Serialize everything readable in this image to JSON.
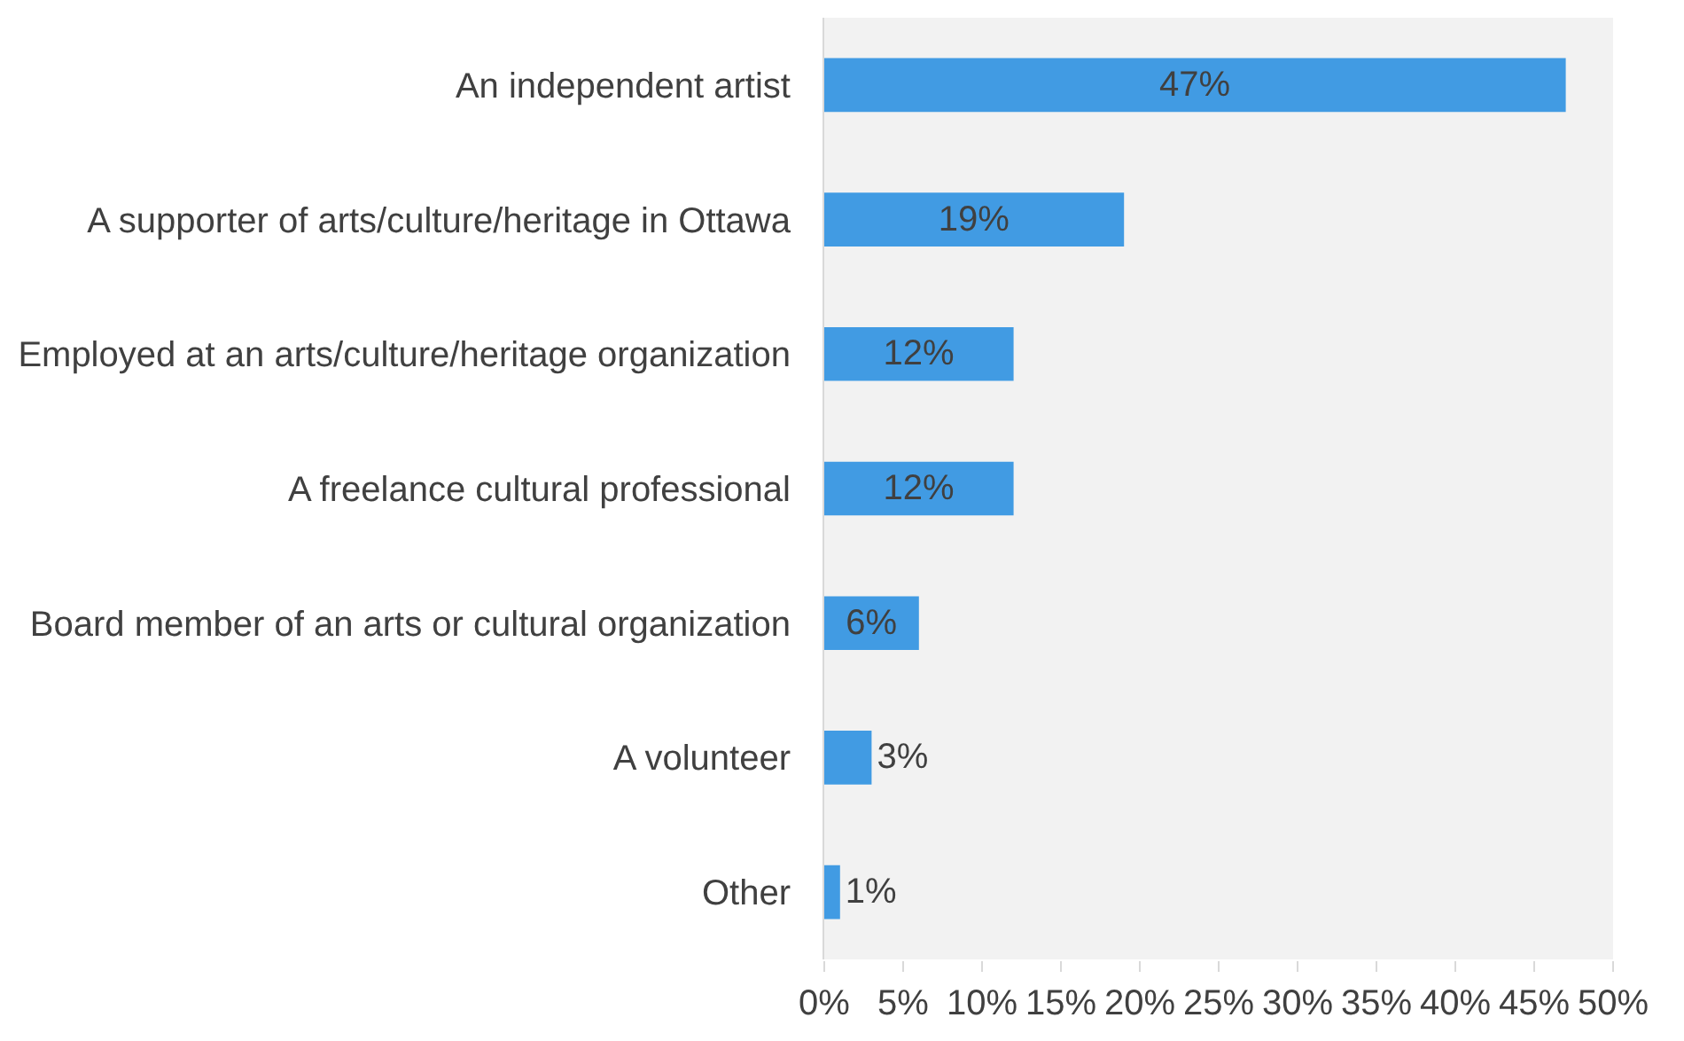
{
  "chart_data": {
    "type": "bar",
    "orientation": "horizontal",
    "categories": [
      "An independent artist",
      "A supporter of arts/culture/heritage in Ottawa",
      "Employed at an arts/culture/heritage organization",
      "A freelance cultural professional",
      "Board member of an arts or cultural organization",
      "A volunteer",
      "Other"
    ],
    "values": [
      47,
      19,
      12,
      12,
      6,
      3,
      1
    ],
    "value_labels": [
      "47%",
      "19%",
      "12%",
      "12%",
      "6%",
      "3%",
      "1%"
    ],
    "color": "#419be3",
    "xlim": [
      0,
      50
    ],
    "xticks": [
      {
        "value": 0,
        "label": "0%"
      },
      {
        "value": 5,
        "label": "5%"
      },
      {
        "value": 10,
        "label": "10%"
      },
      {
        "value": 15,
        "label": "15%"
      },
      {
        "value": 20,
        "label": "20%"
      },
      {
        "value": 25,
        "label": "25%"
      },
      {
        "value": 30,
        "label": "30%"
      },
      {
        "value": 35,
        "label": "35%"
      },
      {
        "value": 40,
        "label": "40%"
      },
      {
        "value": 45,
        "label": "45%"
      },
      {
        "value": 50,
        "label": "50%"
      }
    ],
    "grid": false,
    "legend": false
  }
}
